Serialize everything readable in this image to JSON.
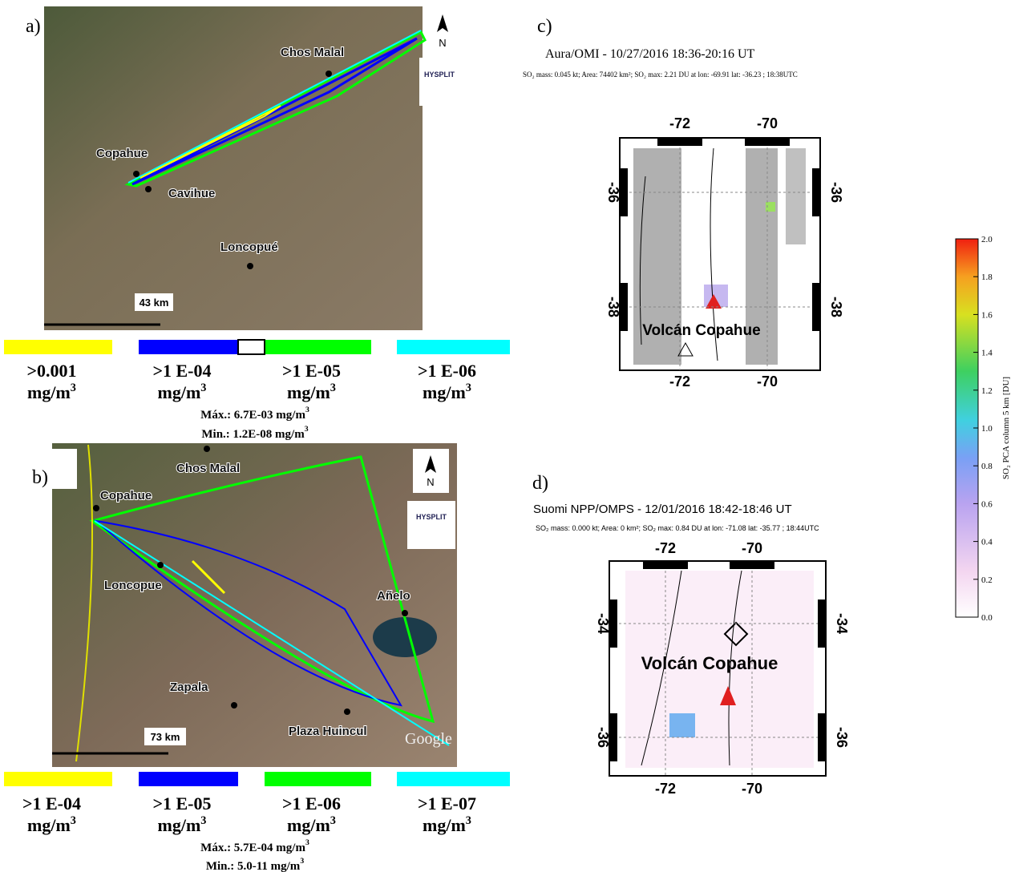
{
  "panels": {
    "a": {
      "label": "a)",
      "places": [
        "Chos Malal",
        "Copahue",
        "Cavihue",
        "Loncopué"
      ],
      "scale": "43 km",
      "north": "N",
      "logo": "HYSPLIT",
      "legend": [
        {
          "text": ">0.001",
          "unit": "mg/m",
          "sup": "3",
          "color": "#ffff00"
        },
        {
          "text": ">1 E-04",
          "unit": "mg/m",
          "sup": "3",
          "color": "#0000ff"
        },
        {
          "text": ">1 E-05",
          "unit": "mg/m",
          "sup": "3",
          "color": "#00ff00"
        },
        {
          "text": ">1 E-06",
          "unit": "mg/m",
          "sup": "3",
          "color": "#00ffff"
        }
      ],
      "max": {
        "text": "Máx.: 6.7E-03 mg/m",
        "sup": "3"
      },
      "min": {
        "text": "Min.: 1.2E-08 mg/m",
        "sup": "3"
      }
    },
    "b": {
      "label": "b)",
      "places": [
        "Chos Malal",
        "Copahue",
        "Loncopue",
        "Añelo",
        "Zapala",
        "Plaza Huincul"
      ],
      "scale": "73 km",
      "north": "N",
      "logo": "HYSPLIT",
      "attribution": "Google",
      "legend": [
        {
          "text": ">1 E-04",
          "unit": "mg/m",
          "sup": "3",
          "color": "#ffff00"
        },
        {
          "text": ">1 E-05",
          "unit": "mg/m",
          "sup": "3",
          "color": "#0000ff"
        },
        {
          "text": ">1 E-06",
          "unit": "mg/m",
          "sup": "3",
          "color": "#00ff00"
        },
        {
          "text": ">1 E-07",
          "unit": "mg/m",
          "sup": "3",
          "color": "#00ffff"
        }
      ],
      "max": {
        "text": "Máx.: 5.7E-04 mg/m",
        "sup": "3"
      },
      "min": {
        "text": "Min.: 5.0-11 mg/m",
        "sup": "3"
      }
    },
    "c": {
      "label": "c)",
      "title": "Aura/OMI - 10/27/2016 18:36-20:16 UT",
      "subtitle": "SO₂ mass: 0.045 kt; Area: 74402 km²; SO₂ max: 2.21 DU at lon: -69.91 lat: -36.23 ; 18:38UTC",
      "lonticks": [
        -72,
        -70
      ],
      "latticks": [
        -36,
        -38
      ],
      "volcano": "Volcán Copahue"
    },
    "d": {
      "label": "d)",
      "title": "Suomi NPP/OMPS - 12/01/2016 18:42-18:46 UT",
      "subtitle": "SO₂ mass: 0.000 kt; Area: 0 km²; SO₂ max: 0.84 DU at lon: -71.08 lat: -35.77 ; 18:44UTC",
      "lonticks": [
        -72,
        -70
      ],
      "latticks": [
        -34,
        -36
      ],
      "volcano": "Volcán Copahue"
    }
  },
  "colorbar": {
    "label": "SO₂ PCA column 5 km [DU]",
    "ticks": [
      {
        "value": 2,
        "label": "2.0"
      },
      {
        "value": 1.8,
        "label": "1.8"
      },
      {
        "value": 1.6,
        "label": "1.6"
      },
      {
        "value": 1.4,
        "label": "1.4"
      },
      {
        "value": 1.2,
        "label": "1.2"
      },
      {
        "value": 1,
        "label": "1.0"
      },
      {
        "value": 0.8,
        "label": "0.8"
      },
      {
        "value": 0.6,
        "label": "0.6"
      },
      {
        "value": 0.4,
        "label": "0.4"
      },
      {
        "value": 0.2,
        "label": "0.2"
      },
      {
        "value": 0,
        "label": "0.0"
      }
    ],
    "lim": [
      0,
      2
    ]
  }
}
